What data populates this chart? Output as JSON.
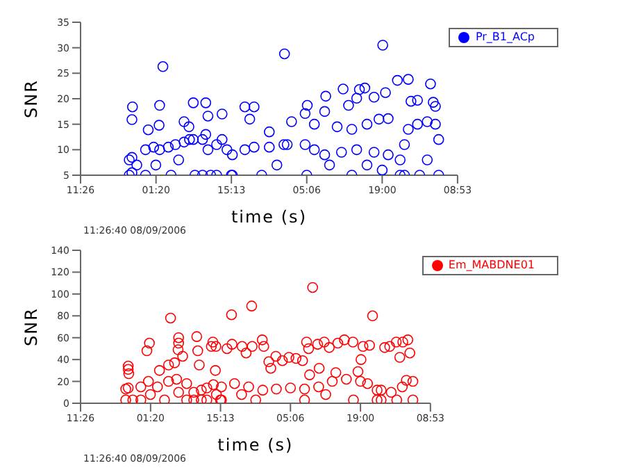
{
  "chart_data": [
    {
      "type": "scatter",
      "xlabel": "time (s)",
      "ylabel": "SNR",
      "annotations": [
        "11:26:40 08/09/2006"
      ],
      "legend": "top right",
      "marker": "circle",
      "grid": false,
      "xlim": [
        "2006-08-09T11:26",
        "2006-08-12T08:53"
      ],
      "xticks": [
        {
          "value": "2006-08-09T11:26",
          "label": "11:26"
        },
        {
          "value": "2006-08-10T01:20",
          "label": "01:20"
        },
        {
          "value": "2006-08-10T15:13",
          "label": "15:13"
        },
        {
          "value": "2006-08-11T05:06",
          "label": "05:06"
        },
        {
          "value": "2006-08-11T19:00",
          "label": "19:00"
        },
        {
          "value": "2006-08-12T08:53",
          "label": "08:53"
        }
      ],
      "ylim": [
        5,
        35
      ],
      "yticks": [
        5,
        10,
        15,
        20,
        25,
        30,
        35
      ],
      "series": [
        {
          "name": "Pr_B1_ACp",
          "color": "#0000ff",
          "x": [
            "2006-08-09T20:24",
            "2006-08-09T20:24",
            "2006-08-09T20:54",
            "2006-08-09T20:54",
            "2006-08-09T21:48",
            "2006-08-09T21:00",
            "2006-08-09T20:54",
            "2006-08-09T23:24",
            "2006-08-09T23:24",
            "2006-08-10T00:54",
            "2006-08-10T02:00",
            "2006-08-10T03:36",
            "2006-08-10T04:54",
            "2006-08-10T06:30",
            "2006-08-10T07:30",
            "2006-08-10T08:12",
            "2006-08-10T08:30",
            "2006-08-10T04:06",
            "2006-08-10T01:18",
            "2006-08-10T05:30",
            "2006-08-10T02:36",
            "2006-08-10T02:00",
            "2006-08-10T08:12",
            "2006-08-09T23:54",
            "2006-08-10T01:54",
            "2006-08-10T06:30",
            "2006-08-10T07:24",
            "2006-08-10T09:54",
            "2006-08-10T09:54",
            "2006-08-10T10:30",
            "2006-08-10T11:24",
            "2006-08-10T10:54",
            "2006-08-10T10:30",
            "2006-08-10T10:54",
            "2006-08-10T12:30",
            "2006-08-10T12:30",
            "2006-08-10T13:30",
            "2006-08-10T15:12",
            "2006-08-10T14:24",
            "2006-08-10T13:30",
            "2006-08-10T15:24",
            "2006-08-10T15:24",
            "2006-08-10T17:42",
            "2006-08-10T19:24",
            "2006-08-10T22:12",
            "2006-08-11T00:54",
            "2006-08-11T01:30",
            "2006-08-11T04:48",
            "2006-08-11T06:30",
            "2006-08-11T08:24",
            "2006-08-11T11:30",
            "2006-08-11T14:18",
            "2006-08-11T17:30",
            "2006-08-11T20:06",
            "2006-08-11T22:18",
            "2006-08-11T22:18",
            "2006-08-10T20:48",
            "2006-08-11T05:06",
            "2006-08-11T13:24",
            "2006-08-11T19:00",
            "2006-08-10T23:36",
            "2006-08-11T09:18",
            "2006-08-11T16:12",
            "2006-08-11T01:00",
            "2006-08-11T19:06",
            "2006-08-11T08:36",
            "2006-08-11T11:48",
            "2006-08-11T14:48",
            "2006-08-11T15:48",
            "2006-08-11T17:30",
            "2006-08-11T19:36",
            "2006-08-11T21:48",
            "2006-08-10T17:42",
            "2006-08-10T19:24",
            "2006-08-11T05:12",
            "2006-08-11T04:48",
            "2006-08-11T08:24",
            "2006-08-11T12:48",
            "2006-08-11T14:18",
            "2006-08-11T20:06",
            "2006-08-10T18:36",
            "2006-08-11T02:18",
            "2006-08-11T10:42",
            "2006-08-11T16:12",
            "2006-08-11T18:24",
            "2006-08-10T22:12",
            "2006-08-11T06:30",
            "2006-08-11T13:24",
            "2006-08-11T23:06",
            "2006-08-11T23:06",
            "2006-08-11T23:48",
            "2006-08-12T01:30",
            "2006-08-12T03:18",
            "2006-08-12T04:48",
            "2006-08-12T05:24",
            "2006-08-12T05:24",
            "2006-08-12T01:54",
            "2006-08-12T03:18",
            "2006-08-11T23:48",
            "2006-08-12T03:54",
            "2006-08-12T00:18",
            "2006-08-12T01:30",
            "2006-08-12T04:24",
            "2006-08-12T04:48"
          ],
          "values": [
            5,
            8,
            5.5,
            8.5,
            7,
            18.4,
            15.9,
            5,
            10,
            10.5,
            10,
            10.5,
            11,
            11.5,
            12,
            12,
            5,
            5,
            7,
            8,
            26.3,
            18.7,
            19.2,
            13.9,
            14.8,
            15.5,
            14.5,
            5,
            12,
            13,
            5,
            10,
            19.2,
            16.6,
            5,
            11,
            12,
            5,
            10,
            17,
            5,
            9,
            10,
            10.5,
            10.5,
            11,
            11,
            11,
            10,
            9,
            9.5,
            10,
            9.5,
            9,
            5,
            8,
            5,
            5,
            5,
            6,
            7,
            7,
            7,
            28.8,
            30.5,
            20.5,
            21.9,
            21.8,
            22.1,
            20.3,
            21.2,
            23.6,
            18.4,
            18.4,
            18.7,
            17.1,
            17.5,
            18.7,
            20.1,
            16.1,
            16,
            15.5,
            14.5,
            15,
            16,
            13.5,
            15,
            14,
            5,
            11,
            14,
            15,
            15.5,
            15,
            5,
            12,
            5,
            8,
            23.8,
            22.9,
            19.5,
            19.7,
            19.3,
            18.5
          ]
        }
      ]
    },
    {
      "type": "scatter",
      "xlabel": "time (s)",
      "ylabel": "SNR",
      "annotations": [
        "11:26:40 08/09/2006"
      ],
      "legend": "top right",
      "marker": "circle",
      "grid": false,
      "xlim": [
        "2006-08-09T11:26",
        "2006-08-12T08:53"
      ],
      "xticks": [
        {
          "value": "2006-08-09T11:26",
          "label": "11:26"
        },
        {
          "value": "2006-08-10T01:20",
          "label": "01:20"
        },
        {
          "value": "2006-08-10T15:13",
          "label": "15:13"
        },
        {
          "value": "2006-08-11T05:06",
          "label": "05:06"
        },
        {
          "value": "2006-08-11T19:00",
          "label": "19:00"
        },
        {
          "value": "2006-08-12T08:53",
          "label": "08:53"
        }
      ],
      "ylim": [
        0,
        140
      ],
      "yticks": [
        0,
        20,
        40,
        60,
        80,
        100,
        120,
        140
      ],
      "series": [
        {
          "name": "Em_MABDNE01",
          "color": "#ff0000",
          "x": [
            "2006-08-09T20:24",
            "2006-08-09T20:24",
            "2006-08-09T20:54",
            "2006-08-09T21:48",
            "2006-08-09T20:54",
            "2006-08-09T20:54",
            "2006-08-09T21:00",
            "2006-08-09T23:24",
            "2006-08-09T23:24",
            "2006-08-10T00:54",
            "2006-08-10T02:42",
            "2006-08-10T04:54",
            "2006-08-10T06:30",
            "2006-08-10T08:30",
            "2006-08-10T08:30",
            "2006-08-10T04:06",
            "2006-08-10T01:18",
            "2006-08-10T06:54",
            "2006-08-10T09:54",
            "2006-08-10T09:54",
            "2006-08-10T11:24",
            "2006-08-10T11:24",
            "2006-08-10T12:30",
            "2006-08-10T12:30",
            "2006-08-10T13:48",
            "2006-08-10T15:12",
            "2006-08-10T14:24",
            "2006-08-10T15:24",
            "2006-08-10T15:24",
            "2006-08-10T18:00",
            "2006-08-10T20:48",
            "2006-08-10T23:36",
            "2006-08-11T02:18",
            "2006-08-11T05:06",
            "2006-08-11T07:54",
            "2006-08-11T10:42",
            "2006-08-11T13:24",
            "2006-08-11T16:12",
            "2006-08-11T19:00",
            "2006-08-11T20:24",
            "2006-08-11T22:18",
            "2006-08-11T22:18",
            "2006-08-10T22:12",
            "2006-08-11T07:54",
            "2006-08-11T17:36",
            "2006-08-10T19:24",
            "2006-08-11T12:06",
            "2006-08-11T23:06",
            "2006-08-11T23:06",
            "2006-08-12T01:06",
            "2006-08-12T03:18",
            "2006-08-12T05:24",
            "2006-08-12T05:24",
            "2006-08-12T02:12",
            "2006-08-10T00:36",
            "2006-08-10T01:06",
            "2006-08-10T03:06",
            "2006-08-10T05:18",
            "2006-08-10T06:54",
            "2006-08-10T06:54",
            "2006-08-10T06:48",
            "2006-08-10T07:42",
            "2006-08-10T04:54",
            "2006-08-10T06:06",
            "2006-08-10T10:30",
            "2006-08-10T10:42",
            "2006-08-10T11:00",
            "2006-08-10T13:42",
            "2006-08-10T13:24",
            "2006-08-10T14:18",
            "2006-08-10T14:12",
            "2006-08-10T17:24",
            "2006-08-10T21:24",
            "2006-08-11T09:30",
            "2006-08-11T21:24",
            "2006-08-10T16:30",
            "2006-08-10T17:30",
            "2006-08-10T19:30",
            "2006-08-10T20:18",
            "2006-08-10T21:30",
            "2006-08-10T23:30",
            "2006-08-10T23:48",
            "2006-08-11T00:48",
            "2006-08-11T01:12",
            "2006-08-11T02:12",
            "2006-08-11T03:30",
            "2006-08-11T04:48",
            "2006-08-11T06:12",
            "2006-08-11T07:30",
            "2006-08-11T08:18",
            "2006-08-11T08:42",
            "2006-08-11T08:54",
            "2006-08-11T10:48",
            "2006-08-11T10:30",
            "2006-08-11T11:48",
            "2006-08-11T12:48",
            "2006-08-11T14:30",
            "2006-08-11T15:48",
            "2006-08-11T17:30",
            "2006-08-11T19:06",
            "2006-08-11T19:30",
            "2006-08-11T20:48",
            "2006-08-11T18:30",
            "2006-08-11T14:06",
            "2006-08-11T23:48",
            "2006-08-12T00:48",
            "2006-08-12T02:06",
            "2006-08-12T03:24",
            "2006-08-12T04:24",
            "2006-08-12T04:48",
            "2006-08-12T02:48",
            "2006-08-12T04:06"
          ],
          "values": [
            3,
            13,
            14,
            3,
            34,
            31,
            27,
            3,
            15,
            20,
            15,
            20,
            22,
            18,
            3,
            3,
            8,
            10,
            3,
            10,
            12,
            3,
            3,
            14,
            17,
            3,
            8,
            3,
            15,
            18,
            15,
            12,
            13,
            14,
            13,
            15,
            20,
            22,
            20,
            18,
            12,
            3,
            3,
            3,
            3,
            8,
            8,
            3,
            12,
            10,
            15,
            20,
            3,
            3,
            48,
            55,
            30,
            78,
            60,
            55,
            49,
            43,
            35,
            37,
            61,
            48,
            35,
            56,
            52,
            52,
            30,
            81,
            89,
            106,
            80,
            50,
            54,
            52,
            46,
            52,
            58,
            52,
            38,
            32,
            43,
            39,
            42,
            41,
            39,
            56,
            50,
            26,
            32,
            54,
            56,
            51,
            55,
            58,
            56,
            40,
            52,
            53,
            29,
            28,
            51,
            52,
            56,
            56,
            58,
            46,
            42,
            21
          ]
        }
      ]
    }
  ]
}
